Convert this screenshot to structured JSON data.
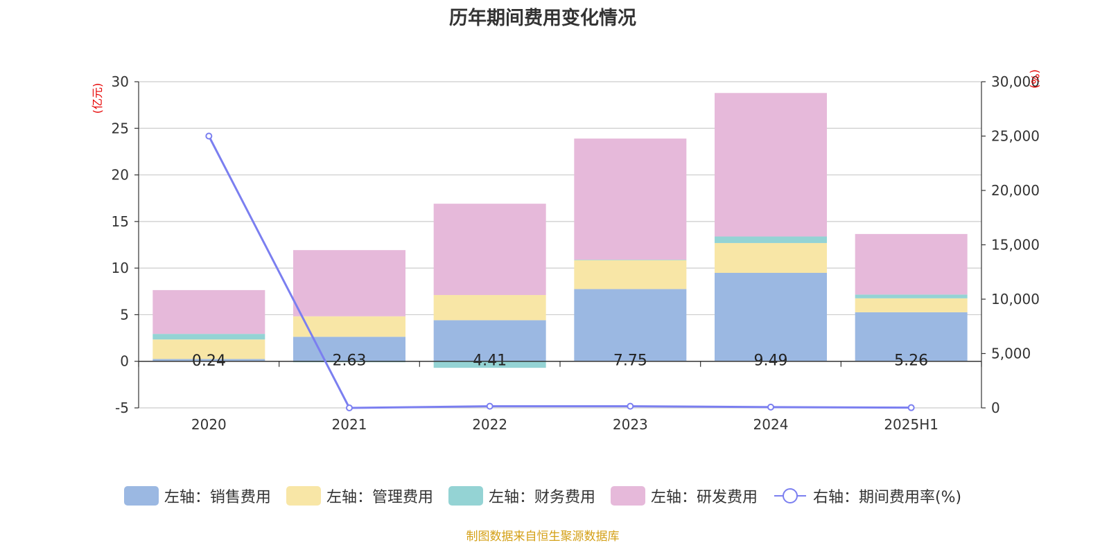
{
  "title": "历年期间费用变化情况",
  "source_note": "制图数据来自恒生聚源数据库",
  "colors": {
    "sales": "#9bb8e2",
    "admin": "#f8e6a6",
    "finance": "#94d3d4",
    "rnd": "#e6b9da",
    "line": "#7b7ff0",
    "unit": "#e60000",
    "source": "#d4a017"
  },
  "chart_data": {
    "type": "bar",
    "stacked": true,
    "categories": [
      "2020",
      "2021",
      "2022",
      "2023",
      "2024",
      "2025H1"
    ],
    "left_axis": {
      "unit": "(亿元)",
      "ylim": [
        -5,
        30
      ],
      "ticks": [
        "-5",
        "0",
        "5",
        "10",
        "15",
        "20",
        "25",
        "30"
      ]
    },
    "right_axis": {
      "unit": "(%)",
      "ylim": [
        0,
        30000
      ],
      "ticks": [
        "0",
        "5,000",
        "10,000",
        "15,000",
        "20,000",
        "25,000",
        "30,000"
      ]
    },
    "series": [
      {
        "name": "左轴：销售费用",
        "axis": "left",
        "values": [
          0.24,
          2.63,
          4.41,
          7.75,
          9.49,
          5.26
        ],
        "labels": [
          "0.24",
          "2.63",
          "4.41",
          "7.75",
          "9.49",
          "5.26"
        ]
      },
      {
        "name": "左轴：管理费用",
        "axis": "left",
        "values": [
          2.1,
          2.2,
          2.7,
          3.1,
          3.2,
          1.5
        ]
      },
      {
        "name": "左轴：财务费用",
        "axis": "left",
        "values": [
          0.6,
          -0.1,
          -0.7,
          0.05,
          0.7,
          0.4
        ]
      },
      {
        "name": "左轴：研发费用",
        "axis": "left",
        "values": [
          4.7,
          7.1,
          9.8,
          13.0,
          15.4,
          6.5
        ]
      },
      {
        "name": "右轴：期间费用率(%)",
        "axis": "right",
        "type": "line",
        "values": [
          25000,
          0,
          150,
          150,
          70,
          20
        ]
      }
    ],
    "grid": true,
    "legend_position": "bottom"
  }
}
